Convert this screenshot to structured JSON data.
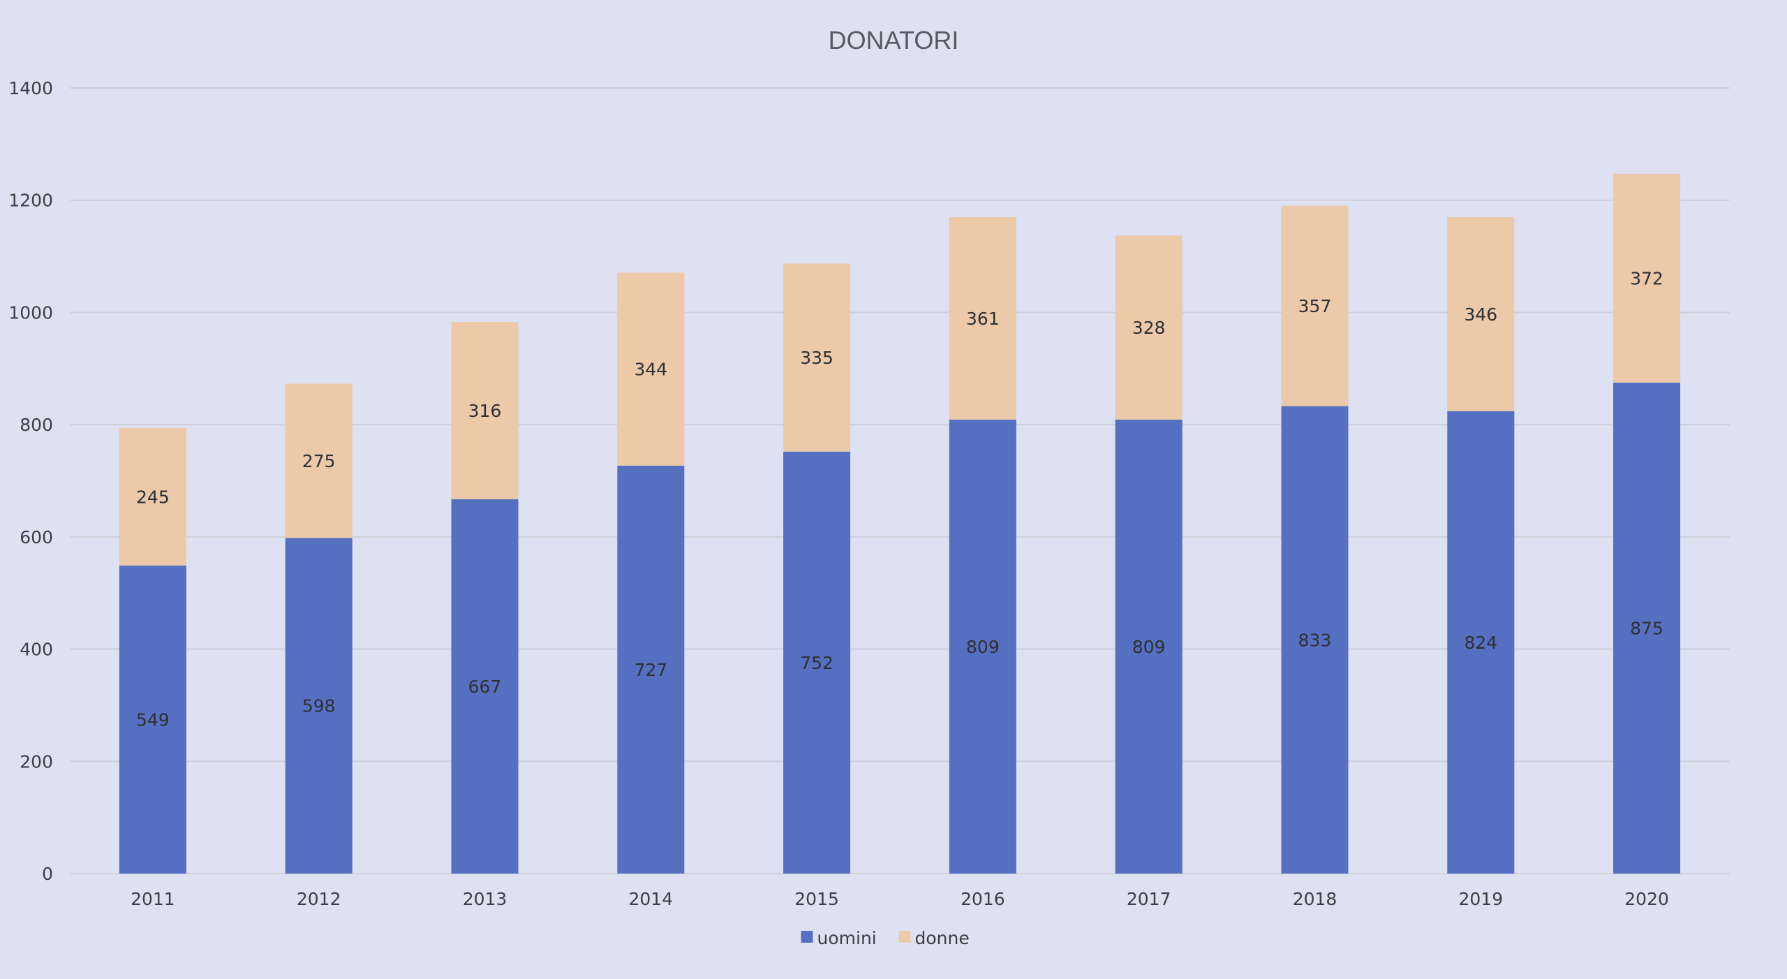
{
  "chart_data": {
    "type": "bar",
    "stacked": true,
    "title": "DONATORI",
    "xlabel": "",
    "ylabel": "",
    "categories": [
      "2011",
      "2012",
      "2013",
      "2014",
      "2015",
      "2016",
      "2017",
      "2018",
      "2019",
      "2020"
    ],
    "series": [
      {
        "name": "uomini",
        "color": "#5570c0",
        "values": [
          549,
          598,
          667,
          727,
          752,
          809,
          809,
          833,
          824,
          875
        ]
      },
      {
        "name": "donne",
        "color": "#ecc9a9",
        "values": [
          245,
          275,
          316,
          344,
          335,
          361,
          328,
          357,
          346,
          372
        ]
      }
    ],
    "ylim": [
      0,
      1400
    ],
    "yticks": [
      0,
      200,
      400,
      600,
      800,
      1000,
      1200,
      1400
    ],
    "grid": true,
    "legend_position": "bottom",
    "background_color": "#dde1f1",
    "gridline_color": "#cfd0da"
  }
}
